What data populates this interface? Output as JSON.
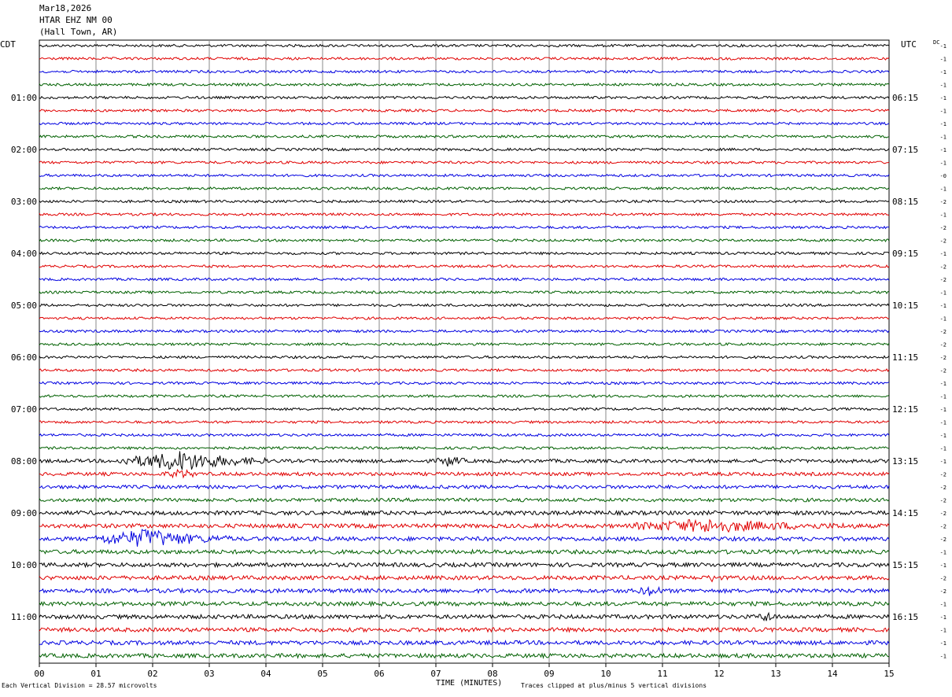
{
  "header": {
    "date": "Mar18,2026",
    "station": "HTAR EHZ NM 00",
    "location": "(Hall Town, AR)"
  },
  "left_tz": "CDT",
  "right_tz": "UTC",
  "dc_label": "DC",
  "footer": {
    "scale": "Each Vertical Division =   28.57 microvolts",
    "axis_title": "TIME (MINUTES)",
    "clip_note": "Traces clipped at plus/minus 5 vertical divisions"
  },
  "colors": {
    "cycle": [
      "#000000",
      "#e00000",
      "#0000e0",
      "#006000"
    ],
    "grid": "#888888"
  },
  "chart_data": {
    "type": "line",
    "title": "",
    "xlabel": "TIME (MINUTES)",
    "x_ticks": [
      "00",
      "01",
      "02",
      "03",
      "04",
      "05",
      "06",
      "07",
      "08",
      "09",
      "10",
      "11",
      "12",
      "13",
      "14",
      "15"
    ],
    "xlim": [
      0,
      15
    ],
    "left_hour_labels": [
      "01:00",
      "02:00",
      "03:00",
      "04:00",
      "05:00",
      "06:00",
      "07:00",
      "08:00",
      "09:00",
      "10:00",
      "11:00"
    ],
    "right_hour_labels": [
      "06:15",
      "07:15",
      "08:15",
      "09:15",
      "10:15",
      "11:15",
      "12:15",
      "13:15",
      "14:15",
      "15:15",
      "16:15"
    ],
    "dc_offsets": [
      "-1",
      "-1",
      "-1",
      "-1",
      "-1",
      "-1",
      "-1",
      "-1",
      "-1",
      "-1",
      "-0",
      "-1",
      "-2",
      "-1",
      "-2",
      "-2",
      "-1",
      "-2",
      "-2",
      "-1",
      "-1",
      "-1",
      "-2",
      "-2",
      "-2",
      "-2",
      "-1",
      "-1",
      "-1",
      "-1",
      "-1",
      "-1",
      "-1",
      "-2",
      "-2",
      "-2",
      "-2",
      "-2",
      "-2",
      "-1",
      "-1",
      "-2",
      "-2",
      "-1",
      "-1",
      "-1",
      "-1",
      "-1"
    ],
    "trace_count": 48,
    "events": [
      {
        "trace": 32,
        "start_min": 1.4,
        "end_min": 4.0,
        "peak_min": 2.5,
        "amp": 2.4
      },
      {
        "trace": 32,
        "start_min": 7.0,
        "end_min": 7.5,
        "peak_min": 7.25,
        "amp": 1.3
      },
      {
        "trace": 33,
        "start_min": 2.2,
        "end_min": 2.8,
        "peak_min": 2.5,
        "amp": 1.0
      },
      {
        "trace": 37,
        "start_min": 10.5,
        "end_min": 14.5,
        "peak_min": 11.8,
        "amp": 1.4
      },
      {
        "trace": 38,
        "start_min": 1.0,
        "end_min": 3.4,
        "peak_min": 1.9,
        "amp": 2.2
      },
      {
        "trace": 41,
        "start_min": 11.8,
        "end_min": 12.0,
        "peak_min": 11.9,
        "amp": 1.0
      },
      {
        "trace": 42,
        "start_min": 10.5,
        "end_min": 11.0,
        "peak_min": 10.8,
        "amp": 1.1
      },
      {
        "trace": 44,
        "start_min": 12.7,
        "end_min": 13.0,
        "peak_min": 12.85,
        "amp": 1.2
      }
    ]
  }
}
